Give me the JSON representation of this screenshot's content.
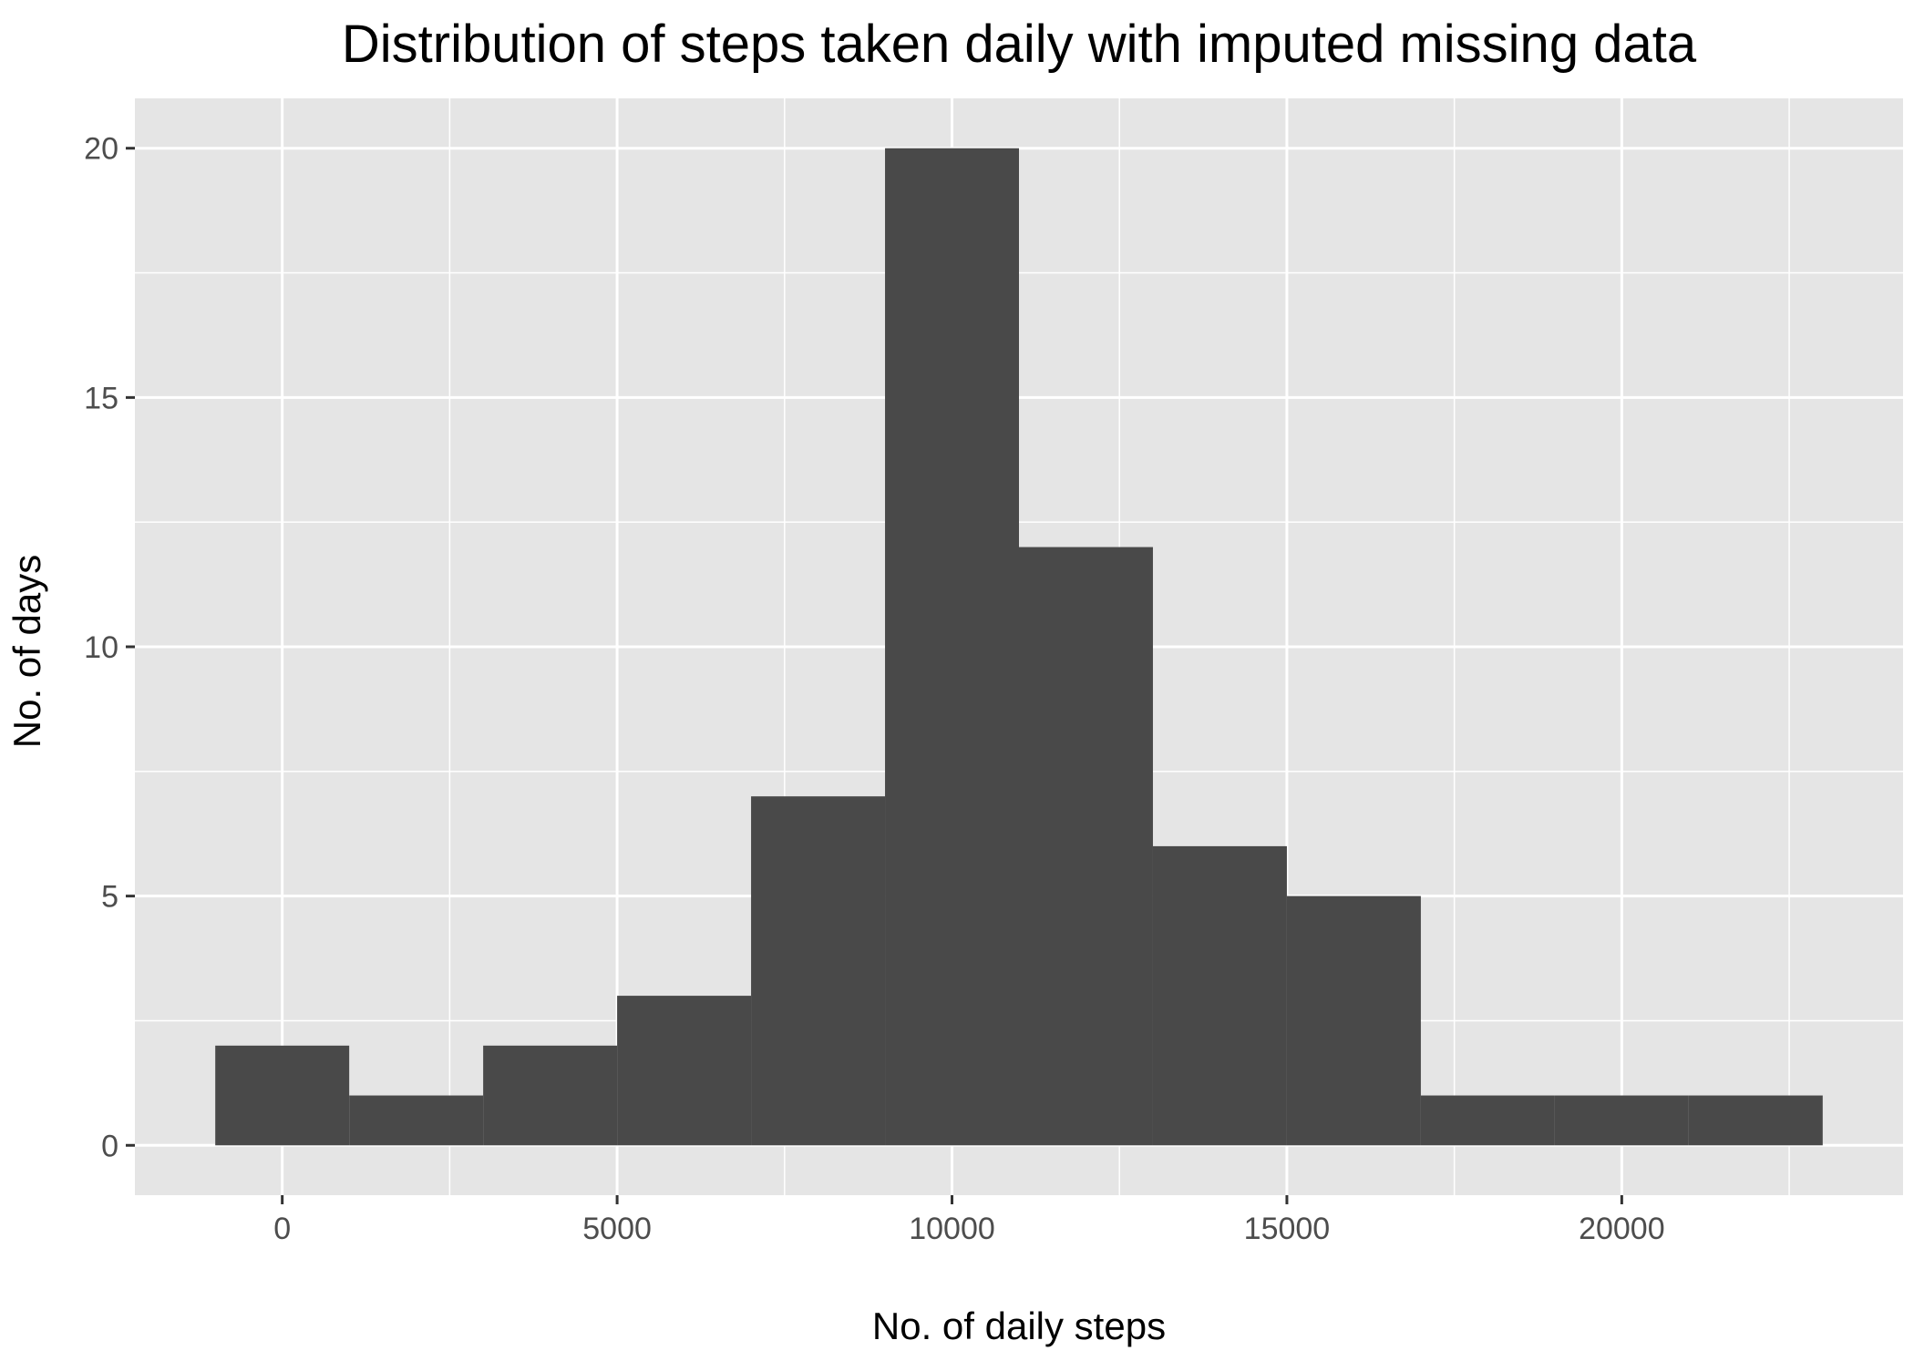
{
  "chart_data": {
    "type": "bar",
    "subtype": "histogram",
    "title": "Distribution of steps taken daily with imputed missing data",
    "xlabel": "No. of daily steps",
    "ylabel": "No. of days",
    "bin_width": 2000,
    "bins": [
      {
        "start": -1000,
        "end": 1000,
        "count": 2
      },
      {
        "start": 1000,
        "end": 3000,
        "count": 1
      },
      {
        "start": 3000,
        "end": 5000,
        "count": 2
      },
      {
        "start": 5000,
        "end": 7000,
        "count": 3
      },
      {
        "start": 7000,
        "end": 9000,
        "count": 7
      },
      {
        "start": 9000,
        "end": 11000,
        "count": 20
      },
      {
        "start": 11000,
        "end": 13000,
        "count": 12
      },
      {
        "start": 13000,
        "end": 15000,
        "count": 6
      },
      {
        "start": 15000,
        "end": 17000,
        "count": 5
      },
      {
        "start": 17000,
        "end": 19000,
        "count": 1
      },
      {
        "start": 19000,
        "end": 21000,
        "count": 1
      },
      {
        "start": 21000,
        "end": 23000,
        "count": 1
      }
    ],
    "x_ticks": [
      0,
      5000,
      10000,
      15000,
      20000
    ],
    "x_tick_labels": [
      "0",
      "5000",
      "10000",
      "15000",
      "20000"
    ],
    "y_ticks": [
      0,
      5,
      10,
      15,
      20
    ],
    "y_tick_labels": [
      "0",
      "5",
      "10",
      "15",
      "20"
    ],
    "xlim": [
      -2200,
      24200
    ],
    "ylim": [
      -1,
      21
    ],
    "grid": true,
    "colors": {
      "panel_background": "#e5e5e5",
      "grid_major": "#ffffff",
      "grid_minor": "#f2f2f2",
      "bar_fill": "#494949",
      "tick_label": "#4d4d4d",
      "tick_mark": "#333333",
      "title_text": "#000000"
    }
  }
}
